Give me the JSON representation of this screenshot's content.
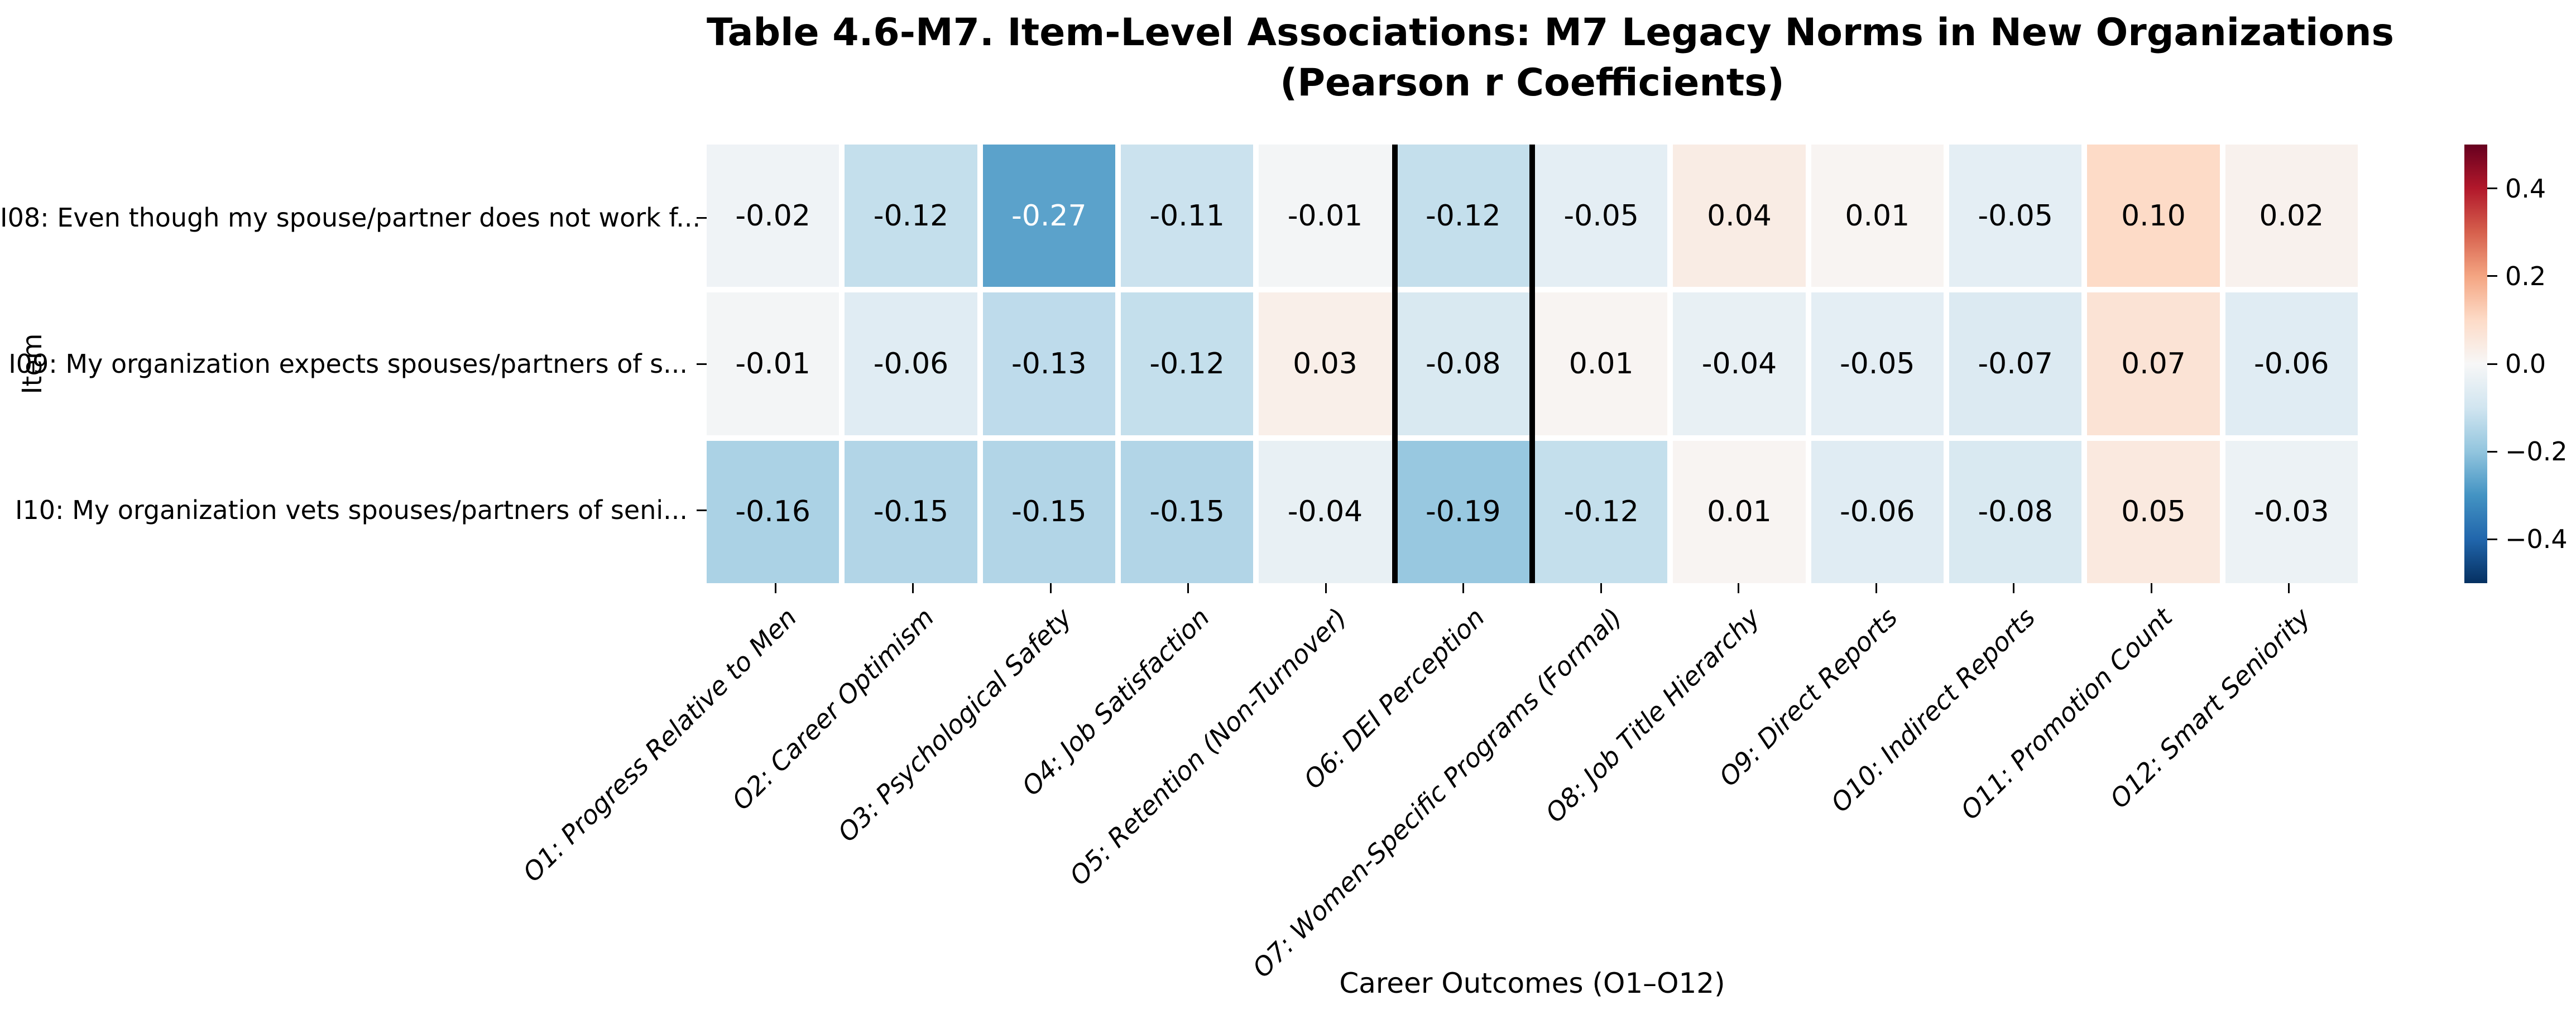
{
  "chart_data": {
    "type": "heatmap",
    "title_line1": "Table 4.6-M7. Item-Level Associations: M7 Legacy Norms in New Organizations",
    "title_line2": "(Pearson r Coefficients)",
    "xlabel": "Career Outcomes (O1–O12)",
    "ylabel": "Item",
    "columns": [
      "O1: Progress Relative to Men",
      "O2: Career Optimism",
      "O3: Psychological Safety",
      "O4: Job Satisfaction",
      "O5: Retention (Non-Turnover)",
      "O6: DEI Perception",
      "O7: Women-Specific Programs (Formal)",
      "O8: Job Title Hierarchy",
      "O9: Direct Reports",
      "O10: Indirect Reports",
      "O11: Promotion Count",
      "O12: Smart Seniority"
    ],
    "rows": [
      "I08: Even though my spouse/partner does not work f...",
      "I09: My organization expects spouses/partners of s...",
      "I10: My organization vets spouses/partners of seni..."
    ],
    "values": [
      [
        -0.02,
        -0.12,
        -0.27,
        -0.11,
        -0.01,
        -0.12,
        -0.05,
        0.04,
        0.01,
        -0.05,
        0.1,
        0.02
      ],
      [
        -0.01,
        -0.06,
        -0.13,
        -0.12,
        0.03,
        -0.08,
        0.01,
        -0.04,
        -0.05,
        -0.07,
        0.07,
        -0.06
      ],
      [
        -0.16,
        -0.15,
        -0.15,
        -0.15,
        -0.04,
        -0.19,
        -0.12,
        0.01,
        -0.06,
        -0.08,
        0.05,
        -0.03
      ]
    ],
    "value_format_decimals": 2,
    "vmin": -0.5,
    "vmax": 0.5,
    "colormap": "RdBu_r",
    "colormap_anchors": [
      "#053061",
      "#2166ac",
      "#4393c3",
      "#92c5de",
      "#d1e5f0",
      "#f7f7f7",
      "#fddbc7",
      "#f4a582",
      "#d6604d",
      "#b2182b",
      "#67001f"
    ],
    "grid_line_color": "#ffffff",
    "colorbar_ticks": [
      {
        "value": 0.4,
        "label": "0.4"
      },
      {
        "value": 0.2,
        "label": "0.2"
      },
      {
        "value": 0.0,
        "label": "0.0"
      },
      {
        "value": -0.2,
        "label": "−0.2"
      },
      {
        "value": -0.4,
        "label": "−0.4"
      }
    ],
    "highlight": {
      "column_index": 5,
      "column_label": "O6: DEI Perception",
      "border_color": "#000000"
    }
  }
}
